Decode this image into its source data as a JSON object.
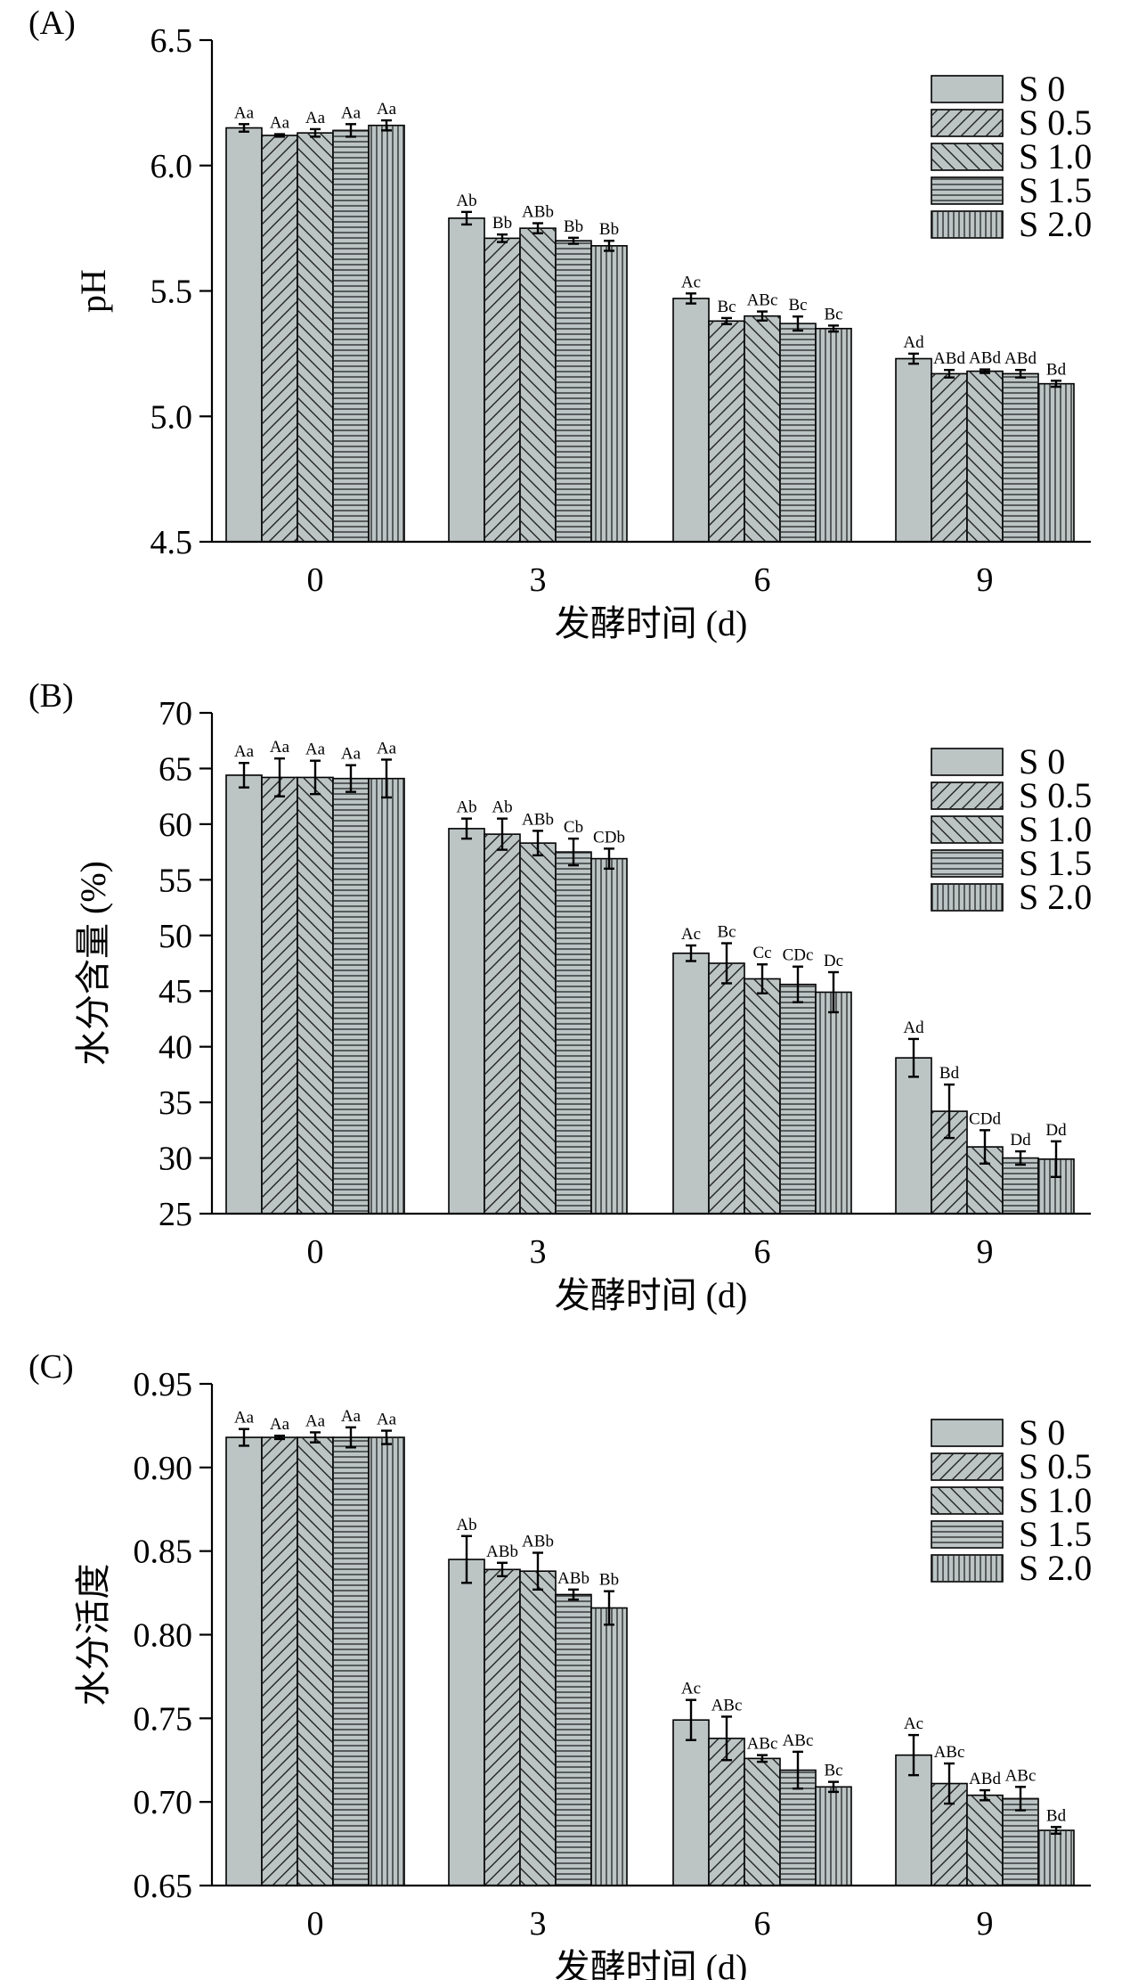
{
  "series_names": [
    "S 0",
    "S 0.5",
    "S 1.0",
    "S 1.5",
    "S 2.0"
  ],
  "colors": {
    "bar_fill": "#bcc4c4",
    "stroke": "#000000",
    "hatch": "#222222"
  },
  "chart_data": [
    {
      "type": "bar",
      "panel_label": "(A)",
      "ylabel": "pH",
      "xlabel": "发酵时间 (d)",
      "categories": [
        "0",
        "3",
        "6",
        "9"
      ],
      "ylim": [
        4.5,
        6.5
      ],
      "yticks": [
        "4.5",
        "5.0",
        "5.5",
        "6.0",
        "6.5"
      ],
      "grid": false,
      "legend": "top-right",
      "series": [
        {
          "name": "S 0",
          "values": [
            6.15,
            5.79,
            5.47,
            5.23
          ],
          "errors": [
            0.015,
            0.025,
            0.02,
            0.02
          ],
          "labels": [
            "Aa",
            "Ab",
            "Ac",
            "Ad"
          ]
        },
        {
          "name": "S 0.5",
          "values": [
            6.12,
            5.71,
            5.38,
            5.17
          ],
          "errors": [
            0.005,
            0.015,
            0.012,
            0.015
          ],
          "labels": [
            "Aa",
            "Bb",
            "Bc",
            "ABd"
          ]
        },
        {
          "name": "S 1.0",
          "values": [
            6.13,
            5.75,
            5.4,
            5.18
          ],
          "errors": [
            0.015,
            0.02,
            0.018,
            0.007
          ],
          "labels": [
            "Aa",
            "ABb",
            "ABc",
            "ABd"
          ]
        },
        {
          "name": "S 1.5",
          "values": [
            6.14,
            5.7,
            5.37,
            5.17
          ],
          "errors": [
            0.025,
            0.012,
            0.028,
            0.015
          ],
          "labels": [
            "Aa",
            "Bb",
            "Bc",
            "ABd"
          ]
        },
        {
          "name": "S 2.0",
          "values": [
            6.16,
            5.68,
            5.35,
            5.13
          ],
          "errors": [
            0.02,
            0.02,
            0.012,
            0.012
          ],
          "labels": [
            "Aa",
            "Bb",
            "Bc",
            "Bd"
          ]
        }
      ]
    },
    {
      "type": "bar",
      "panel_label": "(B)",
      "ylabel": "水分含量 (%)",
      "xlabel": "发酵时间 (d)",
      "categories": [
        "0",
        "3",
        "6",
        "9"
      ],
      "ylim": [
        25,
        70
      ],
      "yticks": [
        "25",
        "30",
        "35",
        "40",
        "45",
        "50",
        "55",
        "60",
        "65",
        "70"
      ],
      "grid": false,
      "legend": "top-right",
      "series": [
        {
          "name": "S 0",
          "values": [
            64.4,
            59.6,
            48.4,
            39.0
          ],
          "errors": [
            1.1,
            0.9,
            0.7,
            1.7
          ],
          "labels": [
            "Aa",
            "Ab",
            "Ac",
            "Ad"
          ]
        },
        {
          "name": "S 0.5",
          "values": [
            64.2,
            59.1,
            47.5,
            34.2
          ],
          "errors": [
            1.7,
            1.4,
            1.8,
            2.4
          ],
          "labels": [
            "Aa",
            "Ab",
            "Bc",
            "Bd"
          ]
        },
        {
          "name": "S 1.0",
          "values": [
            64.2,
            58.3,
            46.1,
            31.0
          ],
          "errors": [
            1.5,
            1.1,
            1.3,
            1.5
          ],
          "labels": [
            "Aa",
            "ABb",
            "Cc",
            "CDd"
          ]
        },
        {
          "name": "S 1.5",
          "values": [
            64.1,
            57.5,
            45.6,
            30.0
          ],
          "errors": [
            1.2,
            1.2,
            1.6,
            0.6
          ],
          "labels": [
            "Aa",
            "Cb",
            "CDc",
            "Dd"
          ]
        },
        {
          "name": "S 2.0",
          "values": [
            64.1,
            56.9,
            44.9,
            29.9
          ],
          "errors": [
            1.7,
            0.9,
            1.8,
            1.6
          ],
          "labels": [
            "Aa",
            "CDb",
            "Dc",
            "Dd"
          ]
        }
      ]
    },
    {
      "type": "bar",
      "panel_label": "(C)",
      "ylabel": "水分活度",
      "xlabel": "发酵时间 (d)",
      "categories": [
        "0",
        "3",
        "6",
        "9"
      ],
      "ylim": [
        0.65,
        0.95
      ],
      "yticks": [
        "0.65",
        "0.70",
        "0.75",
        "0.80",
        "0.85",
        "0.90",
        "0.95"
      ],
      "grid": false,
      "legend": "top-right",
      "series": [
        {
          "name": "S 0",
          "values": [
            0.918,
            0.845,
            0.749,
            0.728
          ],
          "errors": [
            0.005,
            0.014,
            0.012,
            0.012
          ],
          "labels": [
            "Aa",
            "Ab",
            "Ac",
            "Ac"
          ]
        },
        {
          "name": "S 0.5",
          "values": [
            0.918,
            0.839,
            0.738,
            0.711
          ],
          "errors": [
            0.001,
            0.004,
            0.013,
            0.012
          ],
          "labels": [
            "Aa",
            "ABb",
            "ABc",
            "ABc"
          ]
        },
        {
          "name": "S 1.0",
          "values": [
            0.918,
            0.838,
            0.726,
            0.704
          ],
          "errors": [
            0.003,
            0.011,
            0.002,
            0.003
          ],
          "labels": [
            "Aa",
            "ABb",
            "ABc",
            "ABd"
          ]
        },
        {
          "name": "S 1.5",
          "values": [
            0.918,
            0.824,
            0.719,
            0.702
          ],
          "errors": [
            0.006,
            0.003,
            0.011,
            0.007
          ],
          "labels": [
            "Aa",
            "ABb",
            "ABc",
            "ABc"
          ]
        },
        {
          "name": "S 2.0",
          "values": [
            0.918,
            0.816,
            0.709,
            0.683
          ],
          "errors": [
            0.004,
            0.01,
            0.003,
            0.002
          ],
          "labels": [
            "Aa",
            "Bb",
            "Bc",
            "Bd"
          ]
        }
      ]
    }
  ]
}
